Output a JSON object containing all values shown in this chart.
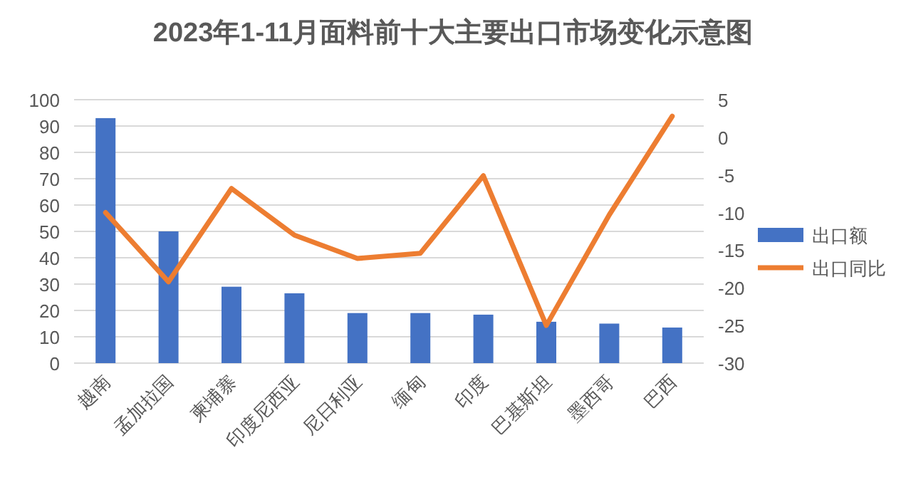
{
  "chart_data": {
    "type": "bar",
    "title": "2023年1-11月面料前十大主要出口市场变化示意图",
    "categories": [
      "越南",
      "孟加拉国",
      "柬埔寨",
      "印度尼西亚",
      "尼日利亚",
      "缅甸",
      "印度",
      "巴基斯坦",
      "墨西哥",
      "巴西"
    ],
    "series": [
      {
        "name": "出口额",
        "color": "#4472c4",
        "values": [
          93,
          50,
          29,
          26.5,
          19,
          19,
          18.4,
          15.7,
          15,
          13.5
        ]
      },
      {
        "name": "出口同比",
        "type": "line",
        "axis": "y2",
        "color": "#ed7d31",
        "values": [
          -10,
          -19.2,
          -6.8,
          -13,
          -16.1,
          -15.4,
          -5.1,
          -25,
          -10.3,
          2.8
        ]
      }
    ],
    "ylim": [
      0,
      100
    ],
    "yticks": [
      0,
      10,
      20,
      30,
      40,
      50,
      60,
      70,
      80,
      90,
      100
    ],
    "y2lim": [
      -30,
      5
    ],
    "y2ticks": [
      -30,
      -25,
      -20,
      -15,
      -10,
      -5,
      0,
      5
    ],
    "grid": "y",
    "legend": "right",
    "marker": "none",
    "line_style": "solid"
  }
}
